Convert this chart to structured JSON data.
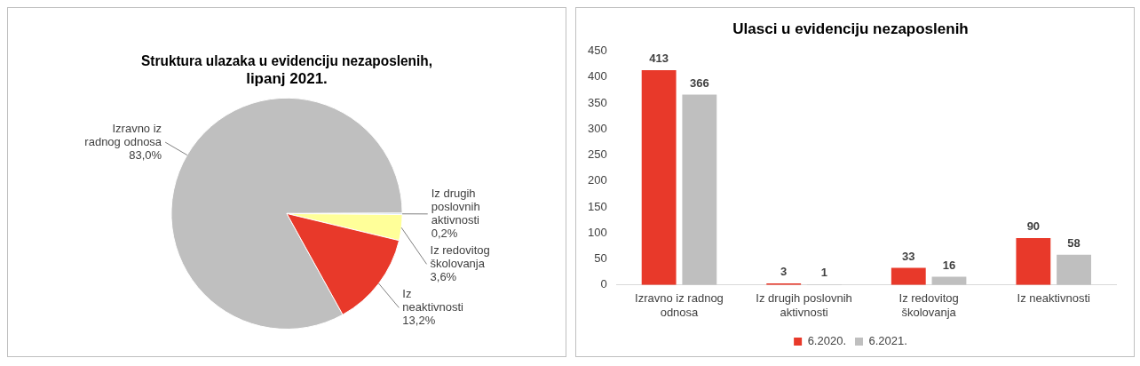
{
  "chart_data": [
    {
      "type": "pie",
      "title": "Struktura ulazaka u evidenciju nezaposlenih, lipanj 2021.",
      "categories": [
        "Izravno iz radnog odnosa",
        "Iz drugih poslovnih aktivnosti",
        "Iz redovitog školovanja",
        "Iz neaktivnosti"
      ],
      "values": [
        83.0,
        0.2,
        3.6,
        13.2
      ],
      "colors": [
        "#bfbfbf",
        "#bdd7ee",
        "#ffff99",
        "#e8392a"
      ],
      "value_labels": [
        "83,0%",
        "0,2%",
        "3,6%",
        "13,2%"
      ]
    },
    {
      "type": "bar",
      "title": "Ulasci u evidenciju nezaposlenih",
      "categories": [
        "Izravno iz radnog odnosa",
        "Iz drugih poslovnih aktivnosti",
        "Iz redovitog školovanja",
        "Iz neaktivnosti"
      ],
      "series": [
        {
          "name": "6.2020.",
          "color": "#e8392a",
          "values": [
            413,
            3,
            33,
            90
          ]
        },
        {
          "name": "6.2021.",
          "color": "#bfbfbf",
          "values": [
            366,
            1,
            16,
            58
          ]
        }
      ],
      "ylim": [
        0,
        450
      ],
      "yticks": [
        0,
        50,
        100,
        150,
        200,
        250,
        300,
        350,
        400,
        450
      ],
      "data_labels": true,
      "legend": "bottom",
      "grid": false
    }
  ]
}
